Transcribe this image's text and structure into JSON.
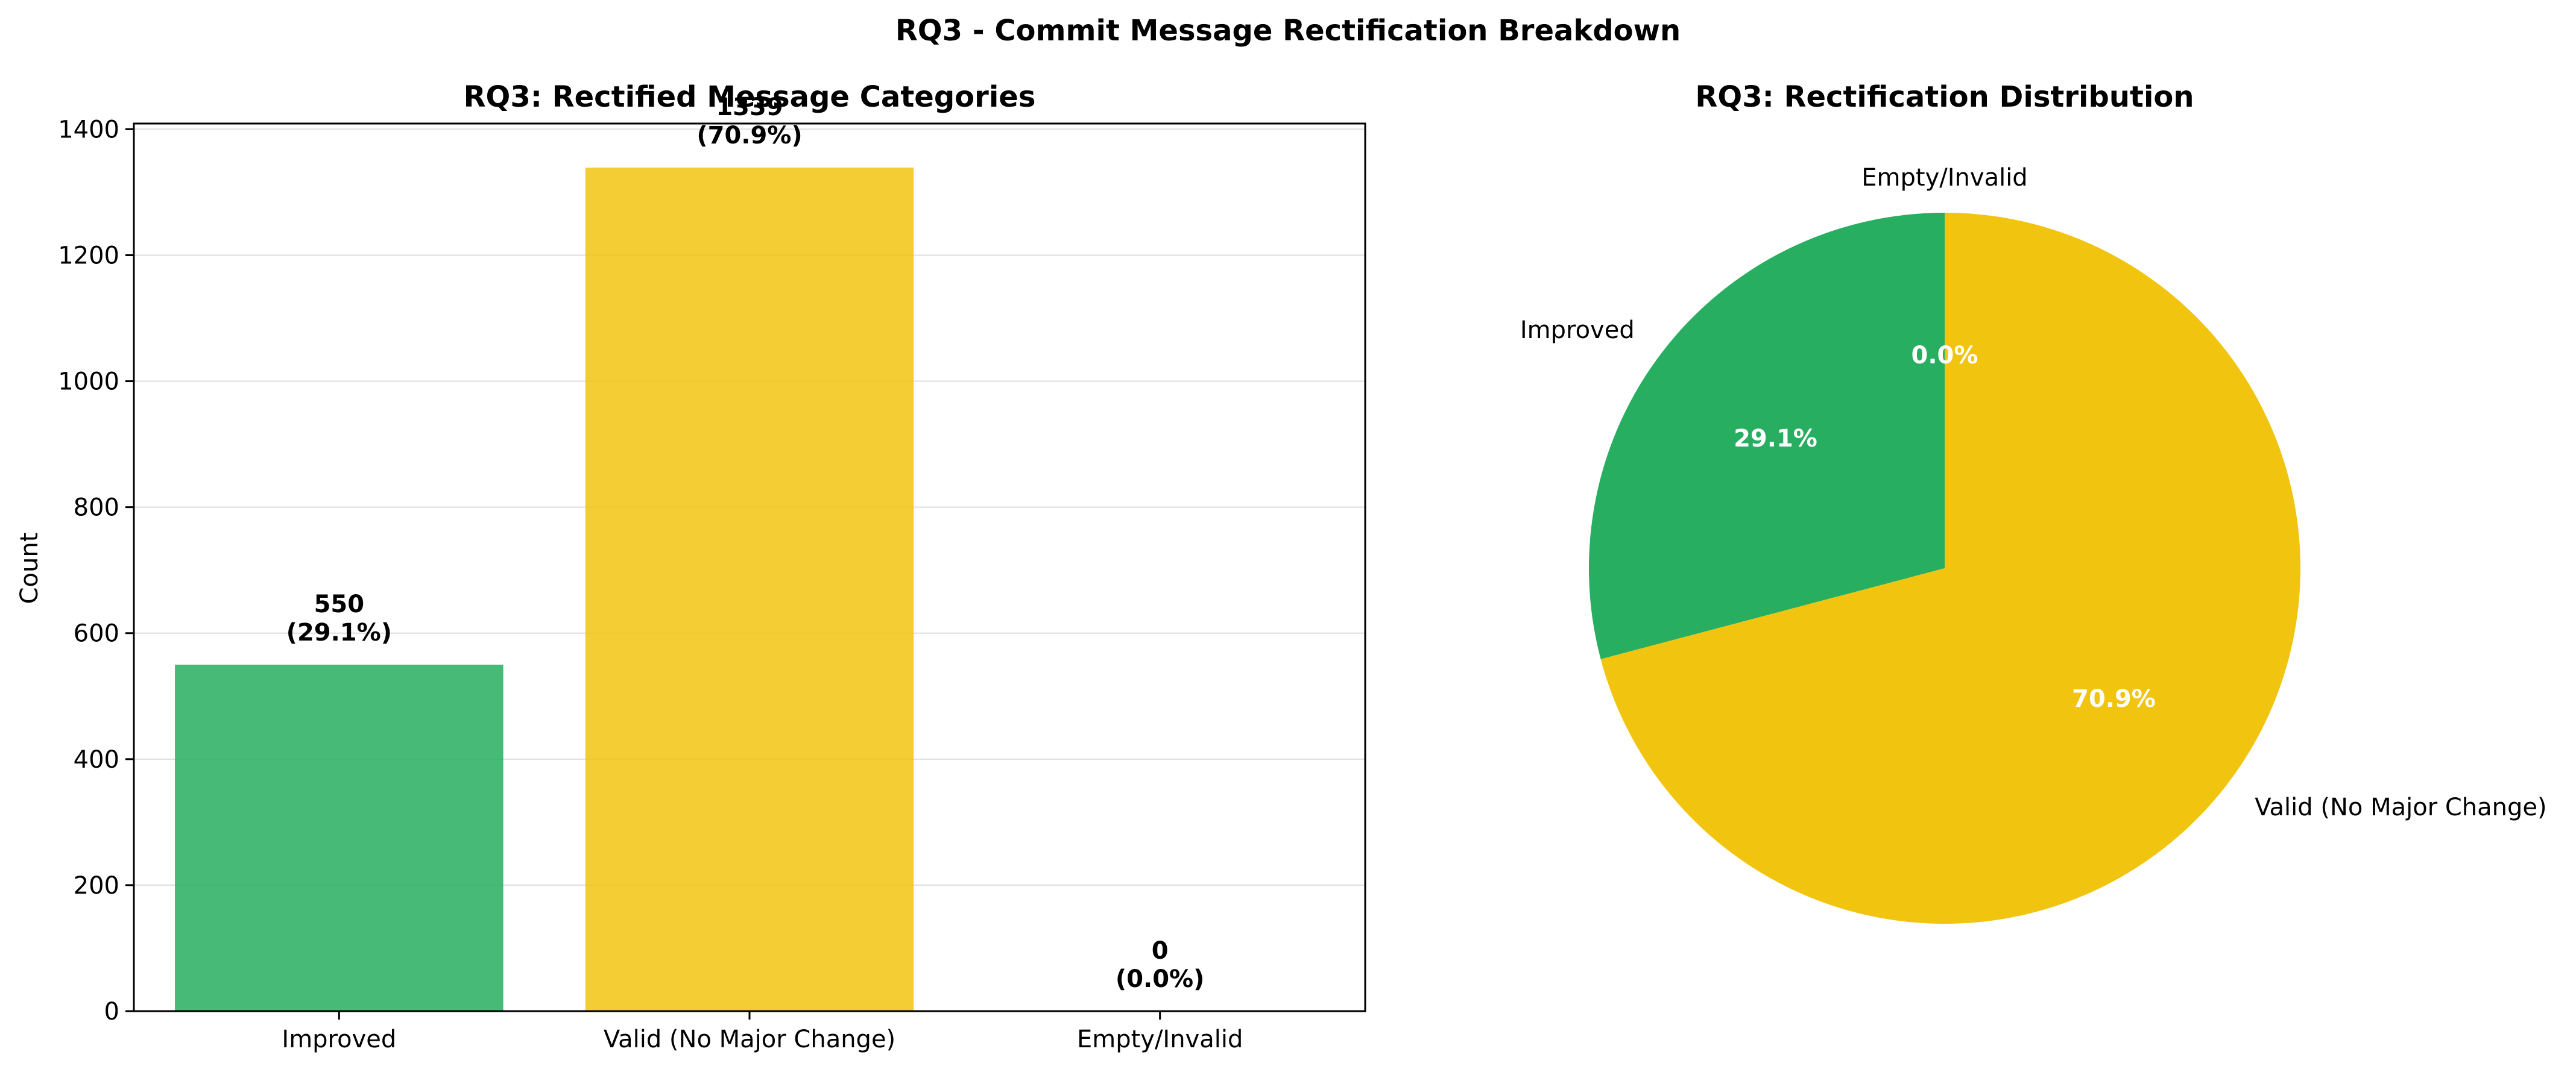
{
  "figure": {
    "title": "RQ3 - Commit Message Rectification Breakdown"
  },
  "chart_data": [
    {
      "type": "bar",
      "title": "RQ3: Rectified Message Categories",
      "xlabel": "",
      "ylabel": "Count",
      "ylim": [
        0,
        1409
      ],
      "yticks": [
        0,
        200,
        400,
        600,
        800,
        1000,
        1200,
        1400
      ],
      "grid": "y",
      "categories": [
        "Improved",
        "Valid (No Major Change)",
        "Empty/Invalid"
      ],
      "values": [
        550,
        1339,
        0
      ],
      "colors": [
        "#27ae60",
        "#f1c40f",
        "#95a5a6"
      ],
      "data_labels": [
        {
          "count": "550",
          "percent": "(29.1%)"
        },
        {
          "count": "1339",
          "percent": "(70.9%)"
        },
        {
          "count": "0",
          "percent": "(0.0%)"
        }
      ]
    },
    {
      "type": "pie",
      "title": "RQ3: Rectification Distribution",
      "labels": [
        "Improved",
        "Valid (No Major Change)",
        "Empty/Invalid"
      ],
      "values": [
        550,
        1339,
        0
      ],
      "percent_labels": [
        "29.1%",
        "70.9%",
        "0.0%"
      ],
      "colors": [
        "#27ae60",
        "#f1c40f",
        "#95a5a6"
      ],
      "start_angle": 90,
      "direction": "counterclockwise"
    }
  ]
}
